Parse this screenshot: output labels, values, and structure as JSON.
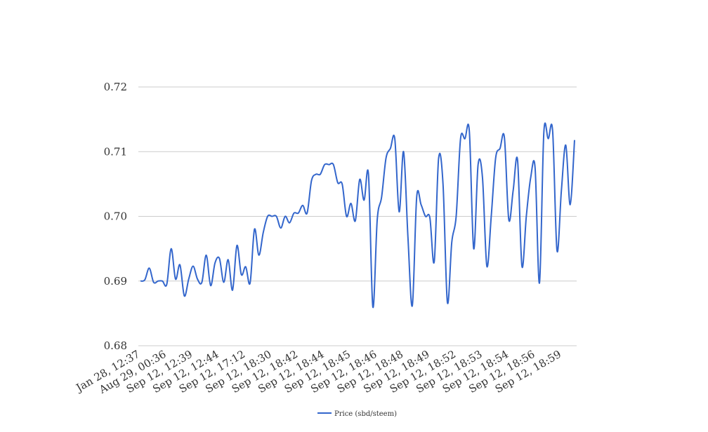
{
  "chart_data": {
    "type": "line",
    "title": "",
    "xlabel": "",
    "ylabel": "",
    "ylim": [
      0.68,
      0.72
    ],
    "yticks": [
      "0.72",
      "0.71",
      "0.70",
      "0.69",
      "0.68"
    ],
    "grid": true,
    "legend_position": "bottom",
    "x_tick_labels": [
      "Jan 28, 12:37",
      "Aug 29, 00:36",
      "Sep 12, 12:39",
      "Sep 12, 12:44",
      "Sep 12, 17:12",
      "Sep 12, 18:30",
      "Sep 12, 18:42",
      "Sep 12, 18:44",
      "Sep 12, 18:45",
      "Sep 12, 18:46",
      "Sep 12, 18:48",
      "Sep 12, 18:49",
      "Sep 12, 18:52",
      "Sep 12, 18:53",
      "Sep 12, 18:54",
      "Sep 12, 18:56",
      "Sep 12, 18:59"
    ],
    "series": [
      {
        "name": "Price (sbd/steem)",
        "color": "#3366cc",
        "values": [
          0.69,
          0.6902,
          0.692,
          0.6898,
          0.69,
          0.69,
          0.6895,
          0.695,
          0.6903,
          0.6925,
          0.6877,
          0.6903,
          0.6923,
          0.6903,
          0.6898,
          0.694,
          0.6893,
          0.6928,
          0.6935,
          0.6898,
          0.6933,
          0.6886,
          0.6955,
          0.691,
          0.6922,
          0.6897,
          0.698,
          0.694,
          0.6975,
          0.7,
          0.7,
          0.7,
          0.6982,
          0.7,
          0.699,
          0.7005,
          0.7005,
          0.7017,
          0.7005,
          0.7055,
          0.7065,
          0.7065,
          0.708,
          0.708,
          0.708,
          0.7052,
          0.705,
          0.7,
          0.702,
          0.6993,
          0.7057,
          0.7025,
          0.7065,
          0.686,
          0.6995,
          0.703,
          0.709,
          0.7105,
          0.712,
          0.7007,
          0.71,
          0.6968,
          0.6862,
          0.703,
          0.7018,
          0.7,
          0.6998,
          0.693,
          0.709,
          0.705,
          0.6867,
          0.696,
          0.7,
          0.712,
          0.712,
          0.7132,
          0.695,
          0.708,
          0.706,
          0.6923,
          0.7,
          0.709,
          0.7105,
          0.7122,
          0.6995,
          0.704,
          0.7087,
          0.6923,
          0.7,
          0.706,
          0.7075,
          0.6897,
          0.713,
          0.712,
          0.7132,
          0.6947,
          0.704,
          0.711,
          0.7018,
          0.7118
        ]
      }
    ]
  }
}
